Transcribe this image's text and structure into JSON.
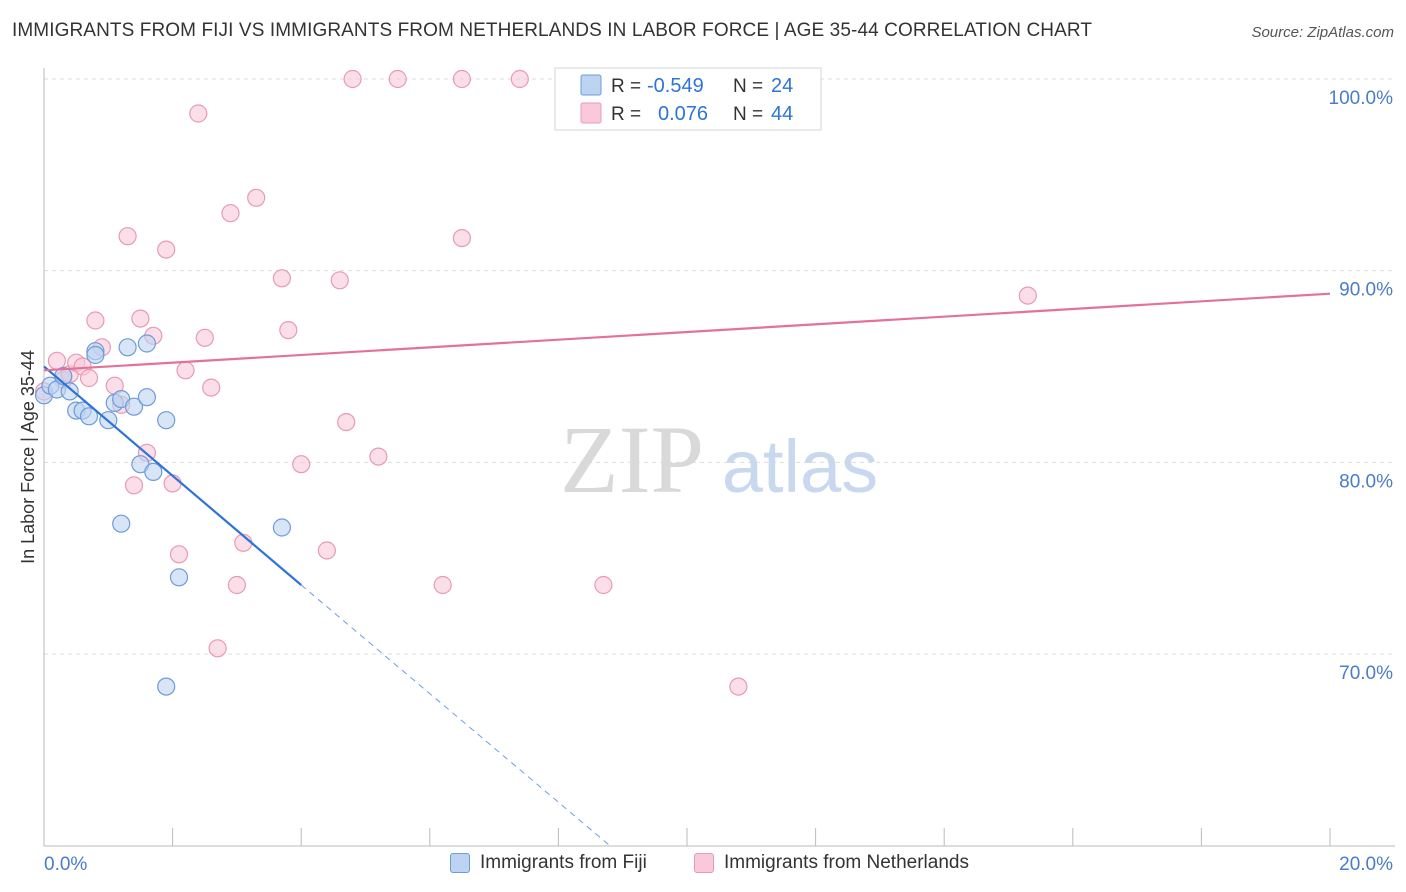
{
  "title": "IMMIGRANTS FROM FIJI VS IMMIGRANTS FROM NETHERLANDS IN LABOR FORCE | AGE 35-44 CORRELATION CHART",
  "source": "Source: ZipAtlas.com",
  "watermark": {
    "zip": "ZIP",
    "atlas": "atlas"
  },
  "colors": {
    "blue_fill": "#bcd3f2",
    "blue_stroke": "#6f9bd8",
    "blue_line": "#2e74d6",
    "pink_fill": "#f9c9d8",
    "pink_stroke": "#e89ab4",
    "pink_line": "#e57099",
    "axis_text": "#4a7cc9",
    "grid": "#dcdcdc"
  },
  "stats": {
    "fiji": {
      "r_label": "R =",
      "r_value": "-0.549",
      "n_label": "N =",
      "n_value": "24"
    },
    "netherlands": {
      "r_label": "R =",
      "r_value": "0.076",
      "n_label": "N =",
      "n_value": "44"
    }
  },
  "chart_data": {
    "type": "scatter",
    "title": "IMMIGRANTS FROM FIJI VS IMMIGRANTS FROM NETHERLANDS IN LABOR FORCE | AGE 35-44 CORRELATION CHART",
    "xlabel": "",
    "ylabel": "In Labor Force | Age 35-44",
    "xlim": [
      0,
      20
    ],
    "ylim": [
      60,
      102
    ],
    "x_tick_labels": [
      "0.0%",
      "20.0%"
    ],
    "y_ticks": [
      70,
      80,
      90,
      100
    ],
    "y_tick_labels": [
      "70.0%",
      "80.0%",
      "90.0%",
      "100.0%"
    ],
    "grid": true,
    "legend_position": "bottom",
    "series": [
      {
        "name": "Immigrants from Fiji",
        "color": "#6f9bd8",
        "trend": {
          "x0": 0.0,
          "y0": 85.0,
          "x1": 4.0,
          "y1": 73.6,
          "dash_to_x": 8.8,
          "dash_to_y": 60.0
        },
        "points": [
          [
            0.0,
            83.5
          ],
          [
            0.1,
            84.0
          ],
          [
            0.2,
            83.8
          ],
          [
            0.3,
            84.5
          ],
          [
            0.4,
            83.7
          ],
          [
            0.5,
            82.7
          ],
          [
            0.6,
            82.7
          ],
          [
            0.7,
            82.4
          ],
          [
            0.8,
            85.8
          ],
          [
            0.8,
            85.6
          ],
          [
            1.0,
            82.2
          ],
          [
            1.1,
            83.1
          ],
          [
            1.2,
            83.3
          ],
          [
            1.2,
            76.8
          ],
          [
            1.3,
            86.0
          ],
          [
            1.4,
            82.9
          ],
          [
            1.5,
            79.9
          ],
          [
            1.6,
            86.2
          ],
          [
            1.7,
            79.5
          ],
          [
            1.9,
            82.2
          ],
          [
            1.9,
            68.3
          ],
          [
            2.1,
            74.0
          ],
          [
            3.7,
            76.6
          ],
          [
            1.6,
            83.4
          ]
        ]
      },
      {
        "name": "Immigrants from Netherlands",
        "color": "#e89ab4",
        "trend": {
          "x0": 0.0,
          "y0": 84.8,
          "x1": 20.0,
          "y1": 88.8
        },
        "points": [
          [
            0.0,
            83.7
          ],
          [
            0.2,
            85.3
          ],
          [
            0.3,
            84.3
          ],
          [
            0.4,
            84.6
          ],
          [
            0.5,
            85.2
          ],
          [
            0.6,
            85.0
          ],
          [
            0.7,
            84.4
          ],
          [
            0.8,
            87.4
          ],
          [
            0.9,
            86.0
          ],
          [
            1.1,
            84.0
          ],
          [
            1.2,
            83.0
          ],
          [
            1.3,
            91.8
          ],
          [
            1.4,
            78.8
          ],
          [
            1.5,
            87.5
          ],
          [
            1.6,
            80.5
          ],
          [
            1.7,
            86.6
          ],
          [
            1.9,
            91.1
          ],
          [
            2.0,
            78.9
          ],
          [
            2.1,
            75.2
          ],
          [
            2.2,
            84.8
          ],
          [
            2.4,
            98.2
          ],
          [
            2.5,
            86.5
          ],
          [
            2.6,
            83.9
          ],
          [
            2.7,
            70.3
          ],
          [
            2.9,
            93.0
          ],
          [
            3.0,
            73.6
          ],
          [
            3.1,
            75.8
          ],
          [
            3.3,
            93.8
          ],
          [
            3.7,
            89.6
          ],
          [
            3.8,
            86.9
          ],
          [
            4.0,
            79.9
          ],
          [
            4.4,
            75.4
          ],
          [
            4.6,
            89.5
          ],
          [
            4.7,
            82.1
          ],
          [
            4.8,
            100.0
          ],
          [
            5.2,
            80.3
          ],
          [
            5.5,
            100.0
          ],
          [
            6.2,
            73.6
          ],
          [
            6.5,
            100.0
          ],
          [
            6.5,
            91.7
          ],
          [
            7.4,
            100.0
          ],
          [
            8.7,
            73.6
          ],
          [
            10.8,
            68.3
          ],
          [
            15.3,
            88.7
          ]
        ]
      }
    ]
  }
}
